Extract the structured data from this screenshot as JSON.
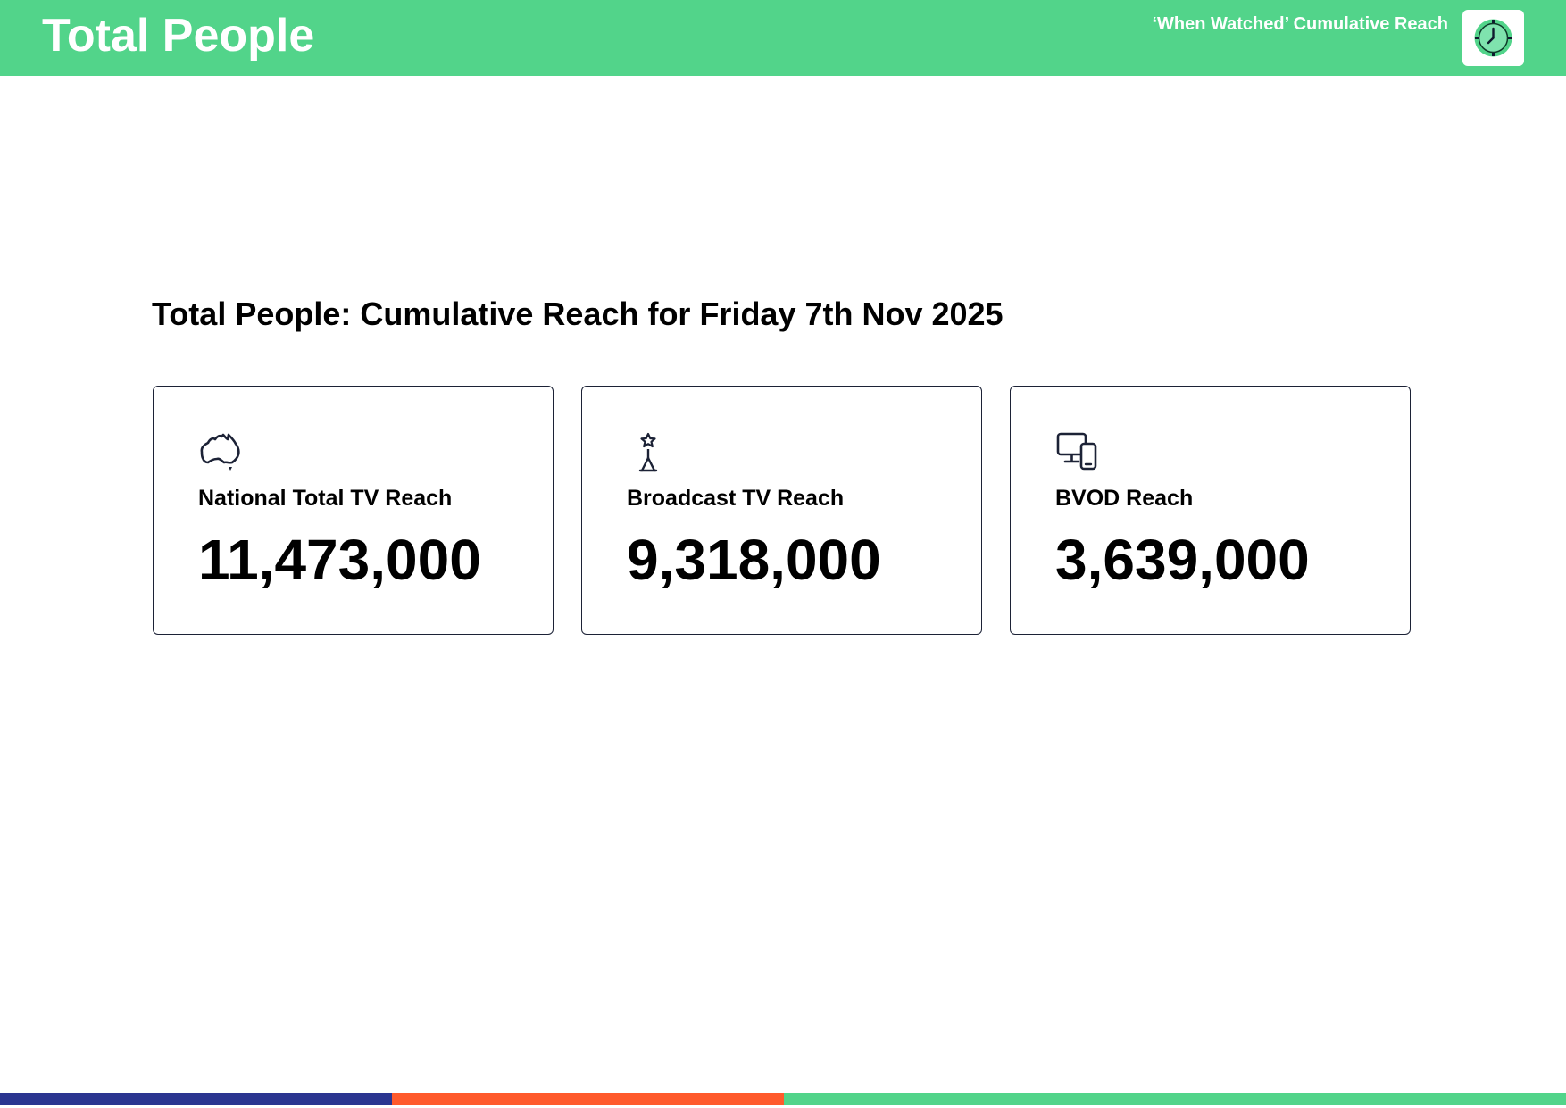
{
  "header": {
    "title": "Total People",
    "subtitle": "‘When Watched’ Cumulative Reach",
    "badge_icon": "clock-icon"
  },
  "main": {
    "heading": "Total People: Cumulative Reach for Friday 7th Nov 2025",
    "cards": [
      {
        "icon": "australia-map-icon",
        "label": "National Total TV Reach",
        "value": "11,473,000"
      },
      {
        "icon": "broadcast-tower-icon",
        "label": "Broadcast TV Reach",
        "value": "9,318,000"
      },
      {
        "icon": "devices-icon",
        "label": "BVOD Reach",
        "value": "3,639,000"
      }
    ]
  },
  "colors": {
    "brand_green": "#52d48a",
    "navy": "#2b3590",
    "orange": "#ff5a2c",
    "card_border": "#1c2236"
  }
}
